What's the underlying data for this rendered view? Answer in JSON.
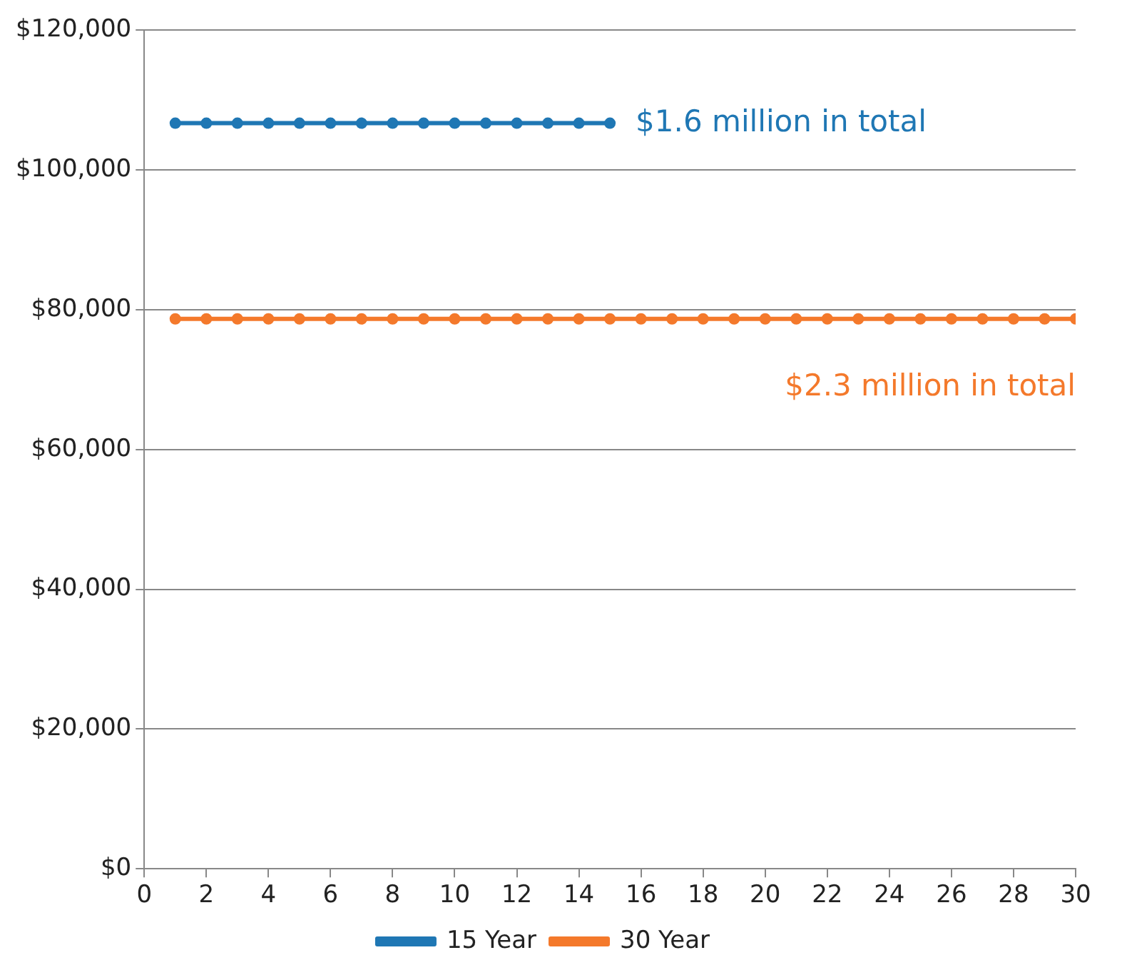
{
  "chart_data": {
    "type": "line",
    "x": [
      1,
      2,
      3,
      4,
      5,
      6,
      7,
      8,
      9,
      10,
      11,
      12,
      13,
      14,
      15,
      16,
      17,
      18,
      19,
      20,
      21,
      22,
      23,
      24,
      25,
      26,
      27,
      28,
      29,
      30
    ],
    "series": [
      {
        "name": "15 Year",
        "color": "#1f77b4",
        "x": [
          1,
          2,
          3,
          4,
          5,
          6,
          7,
          8,
          9,
          10,
          11,
          12,
          13,
          14,
          15
        ],
        "values": [
          106700,
          106700,
          106700,
          106700,
          106700,
          106700,
          106700,
          106700,
          106700,
          106700,
          106700,
          106700,
          106700,
          106700,
          106700
        ]
      },
      {
        "name": "30 Year",
        "color": "#f4792b",
        "values": [
          78700,
          78700,
          78700,
          78700,
          78700,
          78700,
          78700,
          78700,
          78700,
          78700,
          78700,
          78700,
          78700,
          78700,
          78700,
          78700,
          78700,
          78700,
          78700,
          78700,
          78700,
          78700,
          78700,
          78700,
          78700,
          78700,
          78700,
          78700,
          78700,
          78700
        ]
      }
    ],
    "annotations": [
      "$1.6 million in total",
      "$2.3 million in total"
    ],
    "xlim": [
      0,
      30
    ],
    "xticks": [
      0,
      2,
      4,
      6,
      8,
      10,
      12,
      14,
      16,
      18,
      20,
      22,
      24,
      26,
      28,
      30
    ],
    "ylim": [
      0,
      120000
    ],
    "yticks": [
      {
        "value": 0,
        "label": "$0"
      },
      {
        "value": 20000,
        "label": "$20,000"
      },
      {
        "value": 40000,
        "label": "$40,000"
      },
      {
        "value": 60000,
        "label": "$60,000"
      },
      {
        "value": 80000,
        "label": "$80,000"
      },
      {
        "value": 100000,
        "label": "$100,000"
      },
      {
        "value": 120000,
        "label": "$120,000"
      }
    ],
    "grid": "y",
    "legend": "bottom",
    "marker": "circle",
    "line_style": "solid"
  }
}
